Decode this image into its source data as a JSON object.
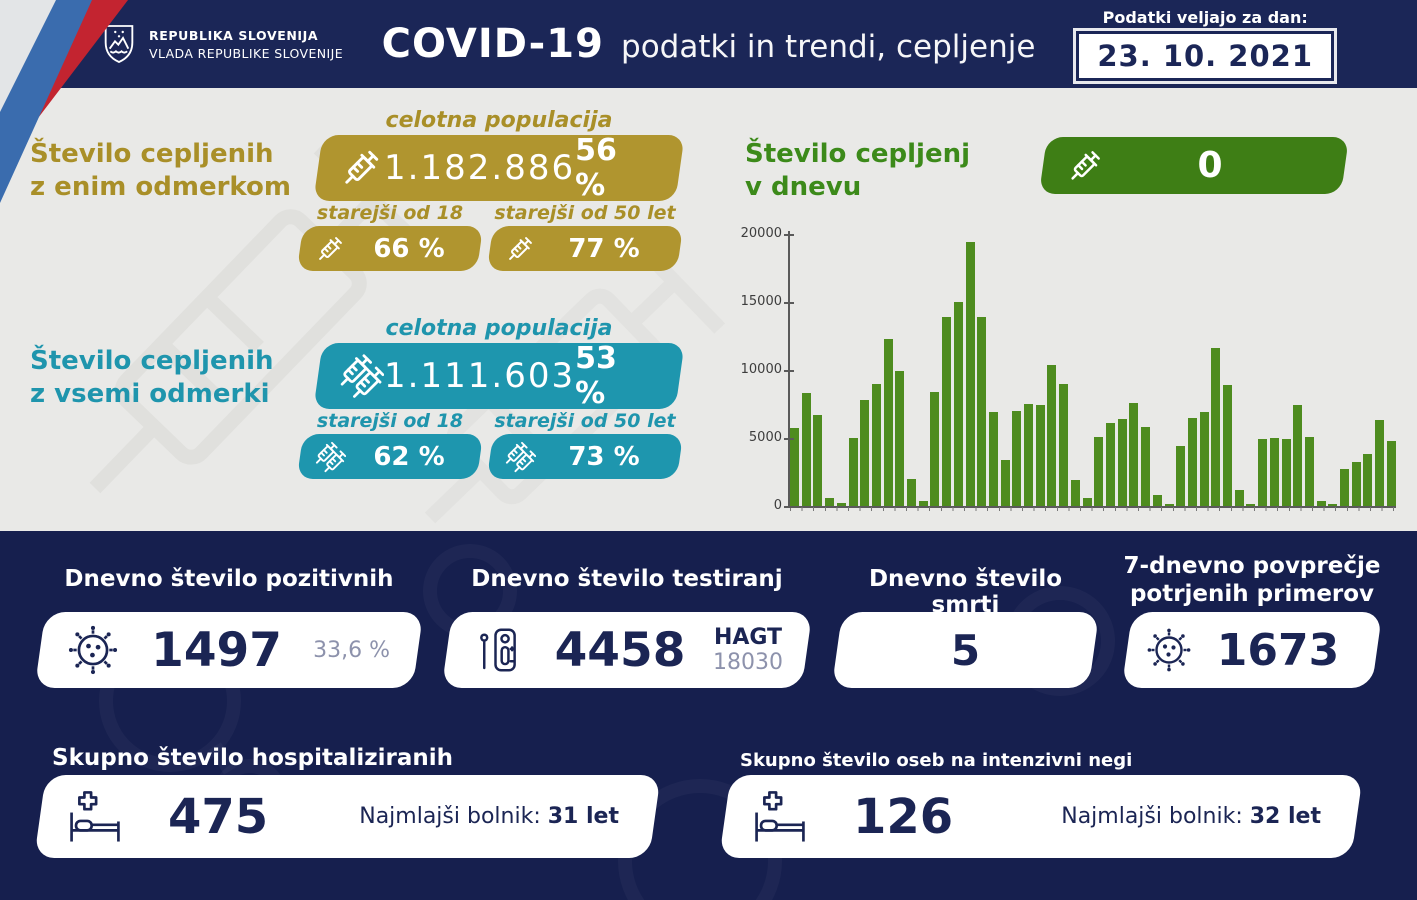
{
  "header": {
    "gov_line1": "REPUBLIKA SLOVENIJA",
    "gov_line2": "VLADA REPUBLIKE SLOVENIJE",
    "title_strong": "COVID-19",
    "title_rest": "podatki in trendi, cepljenje",
    "date_label": "Podatki veljajo za dan:",
    "date_value": "23. 10. 2021"
  },
  "colors": {
    "gold": "#b0952f",
    "teal": "#1e96ae",
    "green": "#3e7e15",
    "bar_green": "#4e8c1f",
    "navy": "#1b2554",
    "header_navy": "#1b2657",
    "bottom_navy": "#161f4e",
    "light_bg": "#e9e9e7"
  },
  "first_dose": {
    "label_line1": "Število cepljenih",
    "label_line2": "z enim odmerkom",
    "population_label": "celotna populacija",
    "count": "1.182.886",
    "percent": "56 %",
    "over18_label": "starejši od 18 let",
    "over18_percent": "66 %",
    "over50_label": "starejši od 50 let",
    "over50_percent": "77 %"
  },
  "all_doses": {
    "label_line1": "Število cepljenih",
    "label_line2": "z vsemi odmerki",
    "population_label": "celotna populacija",
    "count": "1.111.603",
    "percent": "53 %",
    "over18_label": "starejši od 18 let",
    "over18_percent": "62 %",
    "over50_label": "starejši od 50 let",
    "over50_percent": "73 %"
  },
  "daily_vaccinations": {
    "label_line1": "Število cepljenj",
    "label_line2": "v dnevu",
    "count": "0"
  },
  "chart_data": {
    "type": "bar",
    "title": "Število cepljenj v dnevu",
    "xlabel": "",
    "ylabel": "",
    "ylim": [
      0,
      20000
    ],
    "yticks": [
      0,
      5000,
      10000,
      15000,
      20000
    ],
    "grid": false,
    "legend": false,
    "bar_color": "#4e8c1f",
    "values": [
      5700,
      8300,
      6700,
      600,
      250,
      5000,
      7800,
      9000,
      12300,
      9900,
      2000,
      350,
      8400,
      13900,
      15000,
      19400,
      13900,
      6900,
      3400,
      7000,
      7500,
      7400,
      10400,
      9000,
      1900,
      600,
      5100,
      6100,
      6400,
      7600,
      5800,
      800,
      150,
      4400,
      6500,
      6900,
      11600,
      8900,
      1200,
      150,
      4900,
      5000,
      4900,
      7400,
      5100,
      350,
      150,
      2700,
      3200,
      3800,
      6300,
      4800
    ]
  },
  "stats_row1": [
    {
      "title": "Dnevno število pozitivnih",
      "icon": "virus-icon",
      "value": "1497",
      "secondary": "33,6 %"
    },
    {
      "title": "Dnevno število testiranj",
      "icon": "test-kit-icon",
      "value": "4458",
      "secondary_bold": "HAGT",
      "secondary_light": "18030"
    },
    {
      "title": "Dnevno število smrti",
      "value": "5"
    },
    {
      "title_line1": "7-dnevno povprečje",
      "title_line2": "potrjenih primerov",
      "icon": "virus-icon",
      "value": "1673"
    }
  ],
  "stats_row2": [
    {
      "title": "Skupno število hospitaliziranih",
      "icon": "hospital-bed-icon",
      "value": "475",
      "note_label": "Najmlajši bolnik:",
      "note_value": "31 let"
    },
    {
      "title": "Skupno število oseb na intenzivni negi",
      "icon": "hospital-bed-icon",
      "value": "126",
      "note_label": "Najmlajši bolnik:",
      "note_value": "32 let"
    }
  ]
}
